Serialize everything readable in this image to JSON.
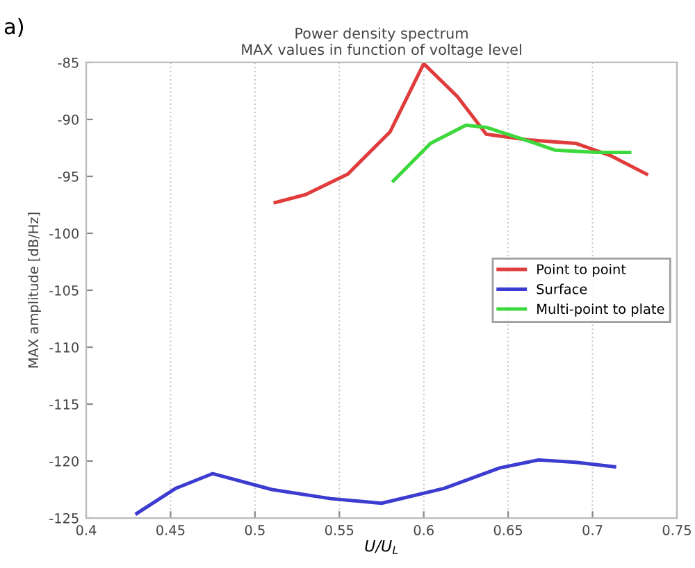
{
  "chart_data": {
    "type": "line",
    "title": "Power density spectrum\nMAX values in function of voltage level",
    "xlabel": "U/U$_{L}$",
    "ylabel": "MAX amplitude [dB/Hz]",
    "annotations": [
      "a)"
    ],
    "xlim": [
      0.4,
      0.75
    ],
    "xticks": [
      0.4,
      0.45,
      0.5,
      0.55,
      0.6,
      0.65,
      0.7,
      0.75
    ],
    "ylim": [
      -125,
      -85
    ],
    "yticks": [
      -125,
      -120,
      -115,
      -110,
      -105,
      -100,
      -95,
      -90,
      -85
    ],
    "grid": "x",
    "legend": "center right",
    "marker": "none",
    "line_style": "solid",
    "series": [
      {
        "name": "Point to point",
        "color": "#e03c3c",
        "x": [
          0.512,
          0.53,
          0.555,
          0.58,
          0.6,
          0.62,
          0.637,
          0.662,
          0.69,
          0.711,
          0.732
        ],
        "values": [
          -97.3,
          -96.6,
          -94.8,
          -91.1,
          -85.1,
          -88.0,
          -91.3,
          -91.8,
          -92.1,
          -93.2,
          -94.8
        ]
      },
      {
        "name": "Surface",
        "color": "#3c3cd0",
        "x": [
          0.43,
          0.453,
          0.475,
          0.51,
          0.545,
          0.575,
          0.612,
          0.645,
          0.668,
          0.69,
          0.713
        ],
        "values": [
          -124.6,
          -122.4,
          -121.1,
          -122.5,
          -123.3,
          -123.7,
          -122.4,
          -120.6,
          -119.9,
          -120.1,
          -120.5
        ]
      },
      {
        "name": "Multi-point to plate",
        "color": "#3cd83c",
        "x": [
          0.582,
          0.604,
          0.625,
          0.637,
          0.658,
          0.678,
          0.703,
          0.722
        ],
        "values": [
          -95.4,
          -92.1,
          -90.5,
          -90.7,
          -91.7,
          -92.7,
          -92.9,
          -92.9
        ]
      }
    ]
  }
}
